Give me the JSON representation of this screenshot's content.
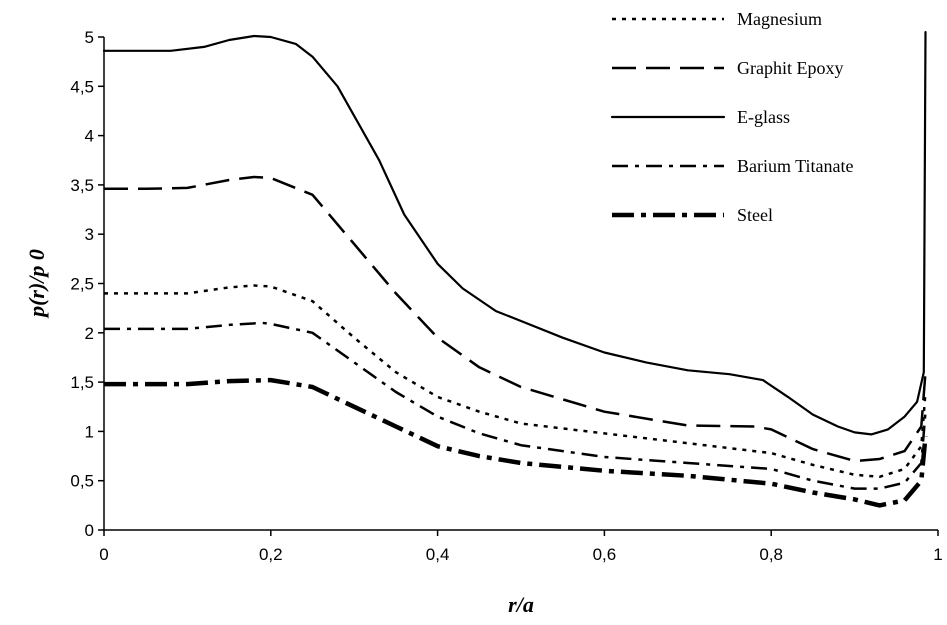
{
  "chart_data": {
    "type": "line",
    "xlabel": "r/a",
    "ylabel": "p(r)/p 0",
    "xlim": [
      0,
      1
    ],
    "ylim": [
      0,
      5
    ],
    "x_tick_labels": [
      "0",
      "0,2",
      "0,4",
      "0,6",
      "0,8",
      "1"
    ],
    "y_tick_labels": [
      "0",
      "0,5",
      "1",
      "1,5",
      "2",
      "2,5",
      "3",
      "3,5",
      "4",
      "4,5",
      "5"
    ],
    "grid": false,
    "legend_position": "top-right",
    "series": [
      {
        "name": "Magnesium",
        "dash": "dotted",
        "points": [
          [
            0,
            2.4
          ],
          [
            0.05,
            2.4
          ],
          [
            0.1,
            2.4
          ],
          [
            0.15,
            2.46
          ],
          [
            0.18,
            2.48
          ],
          [
            0.2,
            2.47
          ],
          [
            0.25,
            2.32
          ],
          [
            0.3,
            1.95
          ],
          [
            0.35,
            1.6
          ],
          [
            0.4,
            1.35
          ],
          [
            0.45,
            1.2
          ],
          [
            0.5,
            1.08
          ],
          [
            0.6,
            0.98
          ],
          [
            0.7,
            0.88
          ],
          [
            0.8,
            0.78
          ],
          [
            0.85,
            0.66
          ],
          [
            0.9,
            0.56
          ],
          [
            0.93,
            0.54
          ],
          [
            0.96,
            0.62
          ],
          [
            0.98,
            0.85
          ],
          [
            0.985,
            1.4
          ]
        ]
      },
      {
        "name": "Graphit Epoxy",
        "dash": "long-dash",
        "points": [
          [
            0,
            3.46
          ],
          [
            0.05,
            3.46
          ],
          [
            0.1,
            3.47
          ],
          [
            0.15,
            3.55
          ],
          [
            0.18,
            3.58
          ],
          [
            0.2,
            3.57
          ],
          [
            0.25,
            3.4
          ],
          [
            0.3,
            2.9
          ],
          [
            0.35,
            2.4
          ],
          [
            0.4,
            1.95
          ],
          [
            0.45,
            1.65
          ],
          [
            0.5,
            1.45
          ],
          [
            0.6,
            1.2
          ],
          [
            0.7,
            1.06
          ],
          [
            0.78,
            1.05
          ],
          [
            0.8,
            1.02
          ],
          [
            0.85,
            0.82
          ],
          [
            0.9,
            0.7
          ],
          [
            0.93,
            0.72
          ],
          [
            0.96,
            0.8
          ],
          [
            0.98,
            1.05
          ],
          [
            0.985,
            1.6
          ]
        ]
      },
      {
        "name": "E-glass",
        "dash": "solid",
        "points": [
          [
            0,
            4.86
          ],
          [
            0.03,
            4.86
          ],
          [
            0.08,
            4.86
          ],
          [
            0.12,
            4.9
          ],
          [
            0.15,
            4.97
          ],
          [
            0.18,
            5.01
          ],
          [
            0.2,
            5.0
          ],
          [
            0.23,
            4.93
          ],
          [
            0.25,
            4.8
          ],
          [
            0.28,
            4.5
          ],
          [
            0.3,
            4.2
          ],
          [
            0.33,
            3.75
          ],
          [
            0.36,
            3.2
          ],
          [
            0.4,
            2.7
          ],
          [
            0.43,
            2.45
          ],
          [
            0.47,
            2.22
          ],
          [
            0.5,
            2.12
          ],
          [
            0.55,
            1.95
          ],
          [
            0.6,
            1.8
          ],
          [
            0.65,
            1.7
          ],
          [
            0.7,
            1.62
          ],
          [
            0.75,
            1.58
          ],
          [
            0.79,
            1.52
          ],
          [
            0.82,
            1.35
          ],
          [
            0.85,
            1.17
          ],
          [
            0.88,
            1.05
          ],
          [
            0.9,
            0.99
          ],
          [
            0.92,
            0.97
          ],
          [
            0.94,
            1.02
          ],
          [
            0.96,
            1.15
          ],
          [
            0.975,
            1.3
          ],
          [
            0.983,
            1.6
          ],
          [
            0.985,
            5.05
          ]
        ]
      },
      {
        "name": "Barium Titanate",
        "dash": "dash-dot",
        "points": [
          [
            0,
            2.04
          ],
          [
            0.05,
            2.04
          ],
          [
            0.1,
            2.04
          ],
          [
            0.15,
            2.08
          ],
          [
            0.19,
            2.1
          ],
          [
            0.2,
            2.09
          ],
          [
            0.25,
            2.0
          ],
          [
            0.3,
            1.7
          ],
          [
            0.35,
            1.4
          ],
          [
            0.4,
            1.15
          ],
          [
            0.45,
            0.98
          ],
          [
            0.5,
            0.86
          ],
          [
            0.6,
            0.74
          ],
          [
            0.7,
            0.68
          ],
          [
            0.8,
            0.62
          ],
          [
            0.85,
            0.5
          ],
          [
            0.9,
            0.42
          ],
          [
            0.93,
            0.42
          ],
          [
            0.96,
            0.48
          ],
          [
            0.98,
            0.68
          ],
          [
            0.985,
            1.2
          ]
        ]
      },
      {
        "name": "Steel",
        "dash": "heavy-dash",
        "points": [
          [
            0,
            1.48
          ],
          [
            0.05,
            1.48
          ],
          [
            0.1,
            1.48
          ],
          [
            0.15,
            1.51
          ],
          [
            0.2,
            1.52
          ],
          [
            0.25,
            1.45
          ],
          [
            0.3,
            1.25
          ],
          [
            0.35,
            1.05
          ],
          [
            0.4,
            0.85
          ],
          [
            0.45,
            0.75
          ],
          [
            0.5,
            0.68
          ],
          [
            0.6,
            0.6
          ],
          [
            0.7,
            0.55
          ],
          [
            0.8,
            0.47
          ],
          [
            0.85,
            0.38
          ],
          [
            0.9,
            0.31
          ],
          [
            0.93,
            0.25
          ],
          [
            0.96,
            0.3
          ],
          [
            0.98,
            0.5
          ],
          [
            0.985,
            0.95
          ]
        ]
      }
    ]
  }
}
